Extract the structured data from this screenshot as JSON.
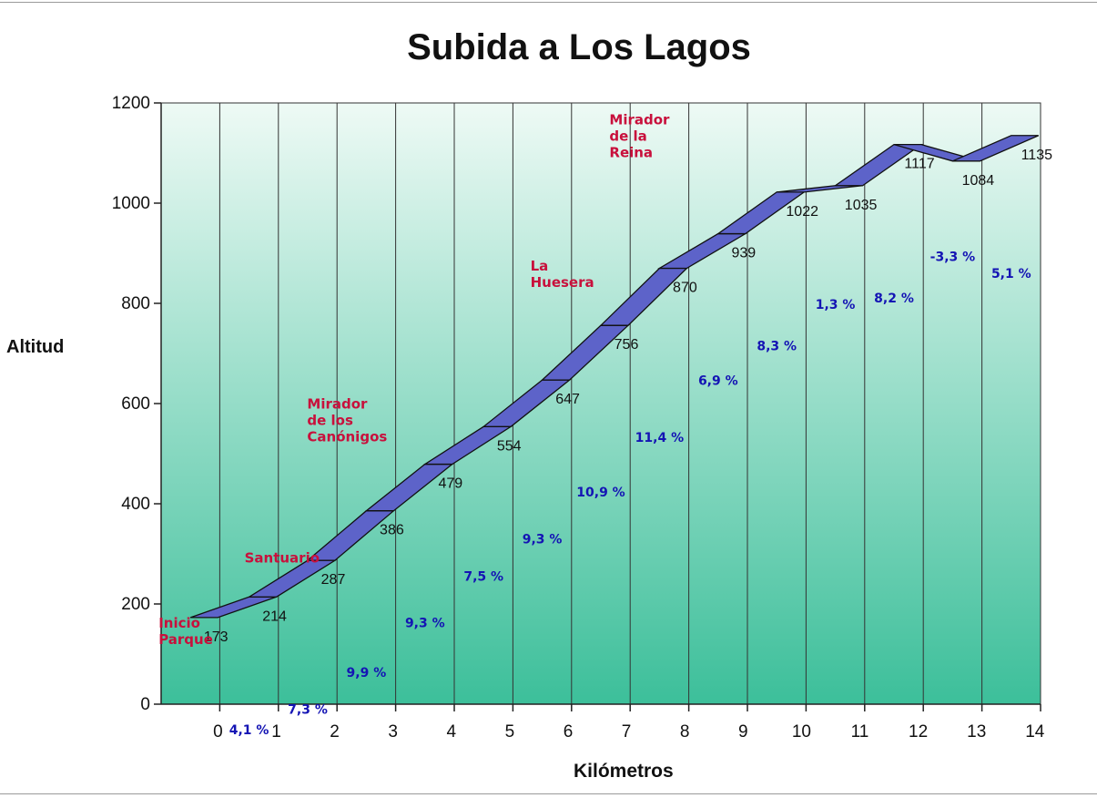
{
  "chart_data": {
    "type": "line",
    "title": "Subida a Los Lagos",
    "xlabel": "Kilómetros",
    "ylabel": "Altitud",
    "ylim": [
      0,
      1200
    ],
    "yticks": [
      0,
      200,
      400,
      600,
      800,
      1000,
      1200
    ],
    "xticks": [
      "0",
      "1",
      "2",
      "3",
      "4",
      "5",
      "6",
      "7",
      "8",
      "9",
      "10",
      "11",
      "12",
      "13",
      "14"
    ],
    "grid": "vertical",
    "legend": "none",
    "series": [
      {
        "values": [
          173,
          214,
          287,
          386,
          479,
          554,
          647,
          756,
          870,
          939,
          1022,
          1035,
          1117,
          1084,
          1135
        ]
      }
    ],
    "value_labels": [
      "173",
      "214",
      "287",
      "386",
      "479",
      "554",
      "647",
      "756",
      "870",
      "939",
      "1022",
      "1035",
      "1117",
      "1084",
      "1135"
    ],
    "grades": [
      "4,1 %",
      "7,3 %",
      "9,9 %",
      "9,3 %",
      "7,5 %",
      "9,3 %",
      "10,9 %",
      "11,4 %",
      "6,9 %",
      "8,3 %",
      "1,3 %",
      "8,2 %",
      "-3,3 %",
      "5,1 %"
    ],
    "places": [
      {
        "lines": [
          "Inicio",
          "Parque"
        ],
        "km": 0
      },
      {
        "lines": [
          "Santuario"
        ],
        "km": 1
      },
      {
        "lines": [
          "Mirador",
          "de los",
          "Canónigos"
        ],
        "km": 3
      },
      {
        "lines": [
          "La",
          "Huesera"
        ],
        "km": 6
      },
      {
        "lines": [
          "Mirador",
          "de la",
          "Reina"
        ],
        "km": 8
      }
    ],
    "colors": {
      "band": "#5d63c9",
      "band_edge": "#111111",
      "plot_top": "#eefaf5",
      "plot_bottom": "#3cbf9a",
      "grade_text": "#1414b4",
      "place_text": "#c8103c"
    }
  }
}
